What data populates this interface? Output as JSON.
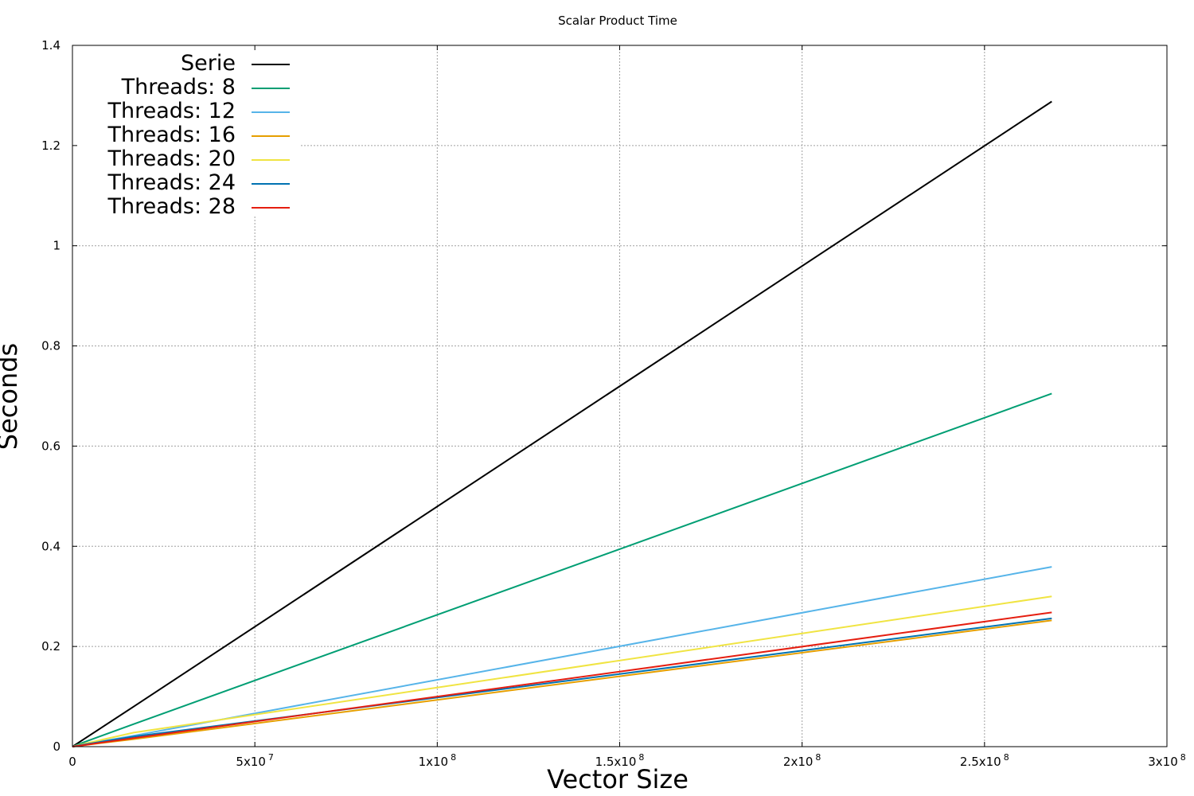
{
  "chart_data": {
    "type": "line",
    "title": "Scalar Product Time",
    "xlabel": "Vector Size",
    "ylabel": "Seconds",
    "xlim": [
      0,
      300000000
    ],
    "ylim": [
      0,
      1.4
    ],
    "grid": true,
    "legend_position": "top-left",
    "x_ticks": [
      {
        "value": 0,
        "mantissa": "0",
        "exponent": ""
      },
      {
        "value": 50000000,
        "mantissa": "5x10",
        "exponent": "7"
      },
      {
        "value": 100000000,
        "mantissa": "1x10",
        "exponent": "8"
      },
      {
        "value": 150000000,
        "mantissa": "1.5x10",
        "exponent": "8"
      },
      {
        "value": 200000000,
        "mantissa": "2x10",
        "exponent": "8"
      },
      {
        "value": 250000000,
        "mantissa": "2.5x10",
        "exponent": "8"
      },
      {
        "value": 300000000,
        "mantissa": "3x10",
        "exponent": "8"
      }
    ],
    "y_ticks": [
      {
        "value": 0,
        "label": "0"
      },
      {
        "value": 0.2,
        "label": "0.2"
      },
      {
        "value": 0.4,
        "label": "0.4"
      },
      {
        "value": 0.6,
        "label": "0.6"
      },
      {
        "value": 0.8,
        "label": "0.8"
      },
      {
        "value": 1.0,
        "label": "1"
      },
      {
        "value": 1.2,
        "label": "1.2"
      },
      {
        "value": 1.4,
        "label": "1.4"
      }
    ],
    "series": [
      {
        "name": "Serie",
        "color": "#000000",
        "x": [
          0,
          2097152,
          16777216,
          268435456
        ],
        "y": [
          0,
          0.01,
          0.08,
          1.288
        ]
      },
      {
        "name": "Threads: 8",
        "color": "#009e73",
        "x": [
          0,
          2097152,
          16777216,
          268435456
        ],
        "y": [
          0,
          0.006,
          0.045,
          0.705
        ]
      },
      {
        "name": "Threads: 12",
        "color": "#56b4e9",
        "x": [
          0,
          2097152,
          16777216,
          268435456
        ],
        "y": [
          0,
          0.003,
          0.022,
          0.359
        ]
      },
      {
        "name": "Threads: 16",
        "color": "#e69f00",
        "x": [
          0,
          2097152,
          16777216,
          268435456
        ],
        "y": [
          0,
          0.002,
          0.015,
          0.252
        ]
      },
      {
        "name": "Threads: 20",
        "color": "#f0e442",
        "x": [
          0,
          2097152,
          16777216,
          268435456
        ],
        "y": [
          0,
          0.004,
          0.028,
          0.3
        ]
      },
      {
        "name": "Threads: 24",
        "color": "#0072b2",
        "x": [
          0,
          2097152,
          16777216,
          268435456
        ],
        "y": [
          0,
          0.003,
          0.02,
          0.256
        ]
      },
      {
        "name": "Threads: 28",
        "color": "#e51e10",
        "x": [
          0,
          2097152,
          16777216,
          268435456
        ],
        "y": [
          0,
          0.002,
          0.017,
          0.268
        ]
      }
    ]
  }
}
